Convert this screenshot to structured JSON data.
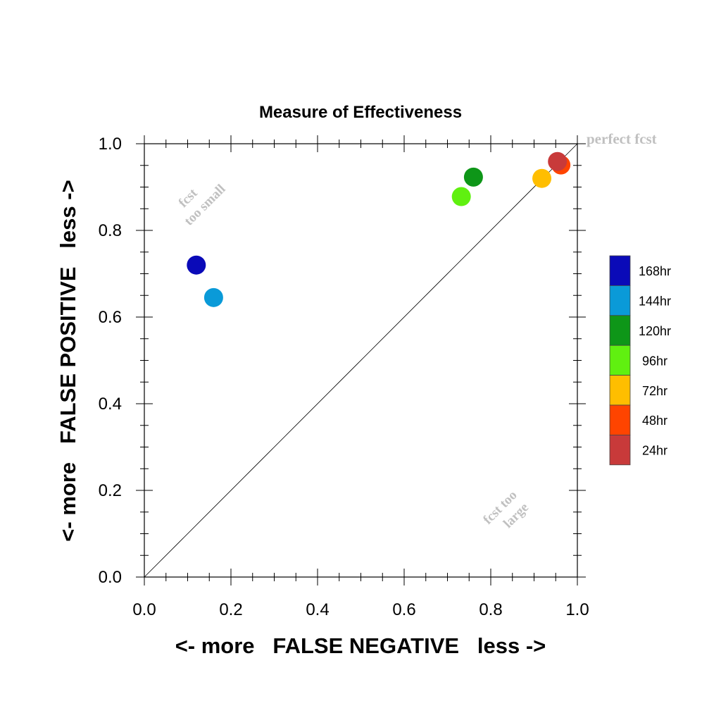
{
  "chart_data": {
    "type": "scatter",
    "title": "Measure of Effectiveness",
    "xlabel": "<- more   FALSE NEGATIVE   less ->",
    "ylabel": "<- more   FALSE POSITIVE   less ->",
    "xlim": [
      0,
      1
    ],
    "ylim": [
      0,
      1
    ],
    "xticks": [
      "0.0",
      "0.2",
      "0.4",
      "0.6",
      "0.8",
      "1.0"
    ],
    "yticks": [
      "0.0",
      "0.2",
      "0.4",
      "0.6",
      "0.8",
      "1.0"
    ],
    "grid": false,
    "diagonal_line": true,
    "annotations": {
      "perfect": "perfect fcst",
      "too_small_line1": "fcst",
      "too_small_line2": "too small",
      "too_large_line1": "fcst too",
      "too_large_line2": "large"
    },
    "legend_placement": "right",
    "series": [
      {
        "name": "168hr",
        "color": "#0a0ab8",
        "x": 0.12,
        "y": 0.72
      },
      {
        "name": "144hr",
        "color": "#0a9ad8",
        "x": 0.16,
        "y": 0.645
      },
      {
        "name": "120hr",
        "color": "#0e9618",
        "x": 0.76,
        "y": 0.923
      },
      {
        "name": "96hr",
        "color": "#60f010",
        "x": 0.732,
        "y": 0.878
      },
      {
        "name": "72hr",
        "color": "#ffbe00",
        "x": 0.918,
        "y": 0.92
      },
      {
        "name": "48hr",
        "color": "#ff4400",
        "x": 0.962,
        "y": 0.951
      },
      {
        "name": "24hr",
        "color": "#c83a3a",
        "x": 0.954,
        "y": 0.959
      }
    ]
  }
}
